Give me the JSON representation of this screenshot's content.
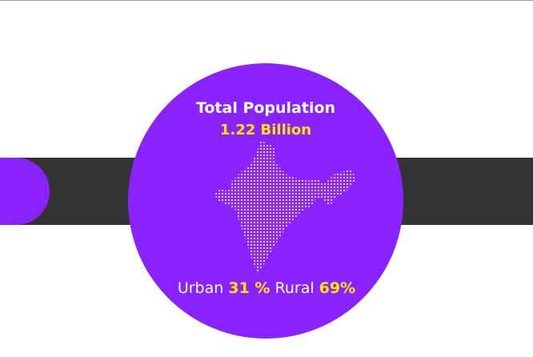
{
  "title": "Total Population",
  "total": "1.22 Billion",
  "urban": {
    "label": "Urban",
    "value": "31 %"
  },
  "rural": {
    "label": "Rural",
    "value": "69%"
  }
}
